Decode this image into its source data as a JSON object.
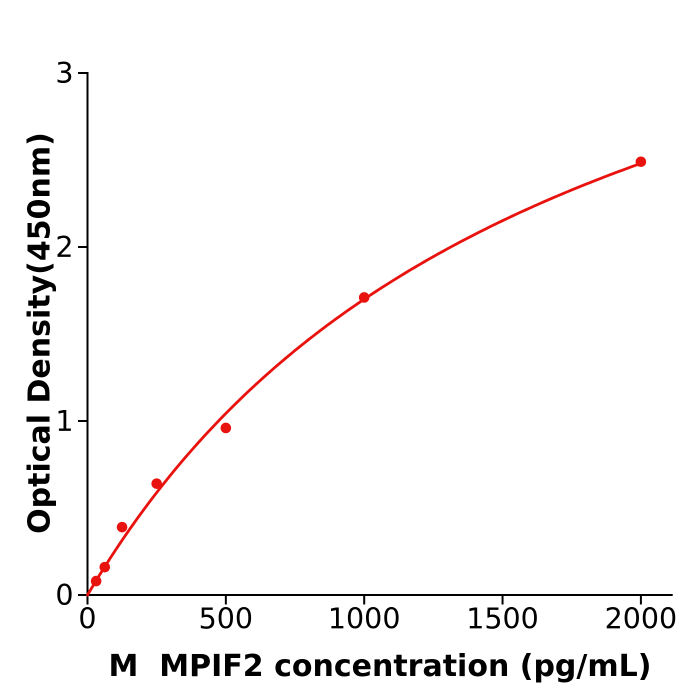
{
  "page": {
    "background": "#ffffff"
  },
  "chart_data": {
    "type": "scatter",
    "title": "",
    "xlabel": "M  MPIF2 concentration (pg/mL)",
    "ylabel": "Optical Density(450nm)",
    "xlim": [
      0,
      2115
    ],
    "ylim": [
      0,
      3
    ],
    "x_tick_values": [
      0,
      500,
      1000,
      1500,
      2000
    ],
    "x_ticks": [
      "0",
      "500",
      "1000",
      "1500",
      "2000"
    ],
    "y_tick_values": [
      0,
      1,
      2,
      3
    ],
    "y_ticks": [
      "0",
      "1",
      "2",
      "3"
    ],
    "grid": false,
    "legend": "none",
    "points": {
      "x": [
        31.25,
        62.5,
        125,
        250,
        500,
        1000,
        2000
      ],
      "y": [
        0.08,
        0.16,
        0.39,
        0.64,
        0.96,
        1.71,
        2.49
      ]
    },
    "fit_curve": {
      "type": "michaelis_menten",
      "formula": "y = a*x / (b + x)",
      "a": 4.585,
      "b": 1697,
      "x_start": 0,
      "x_end": 2000
    },
    "colors": {
      "series": "#e8120e",
      "axis": "#000000",
      "text": "#000000"
    }
  }
}
